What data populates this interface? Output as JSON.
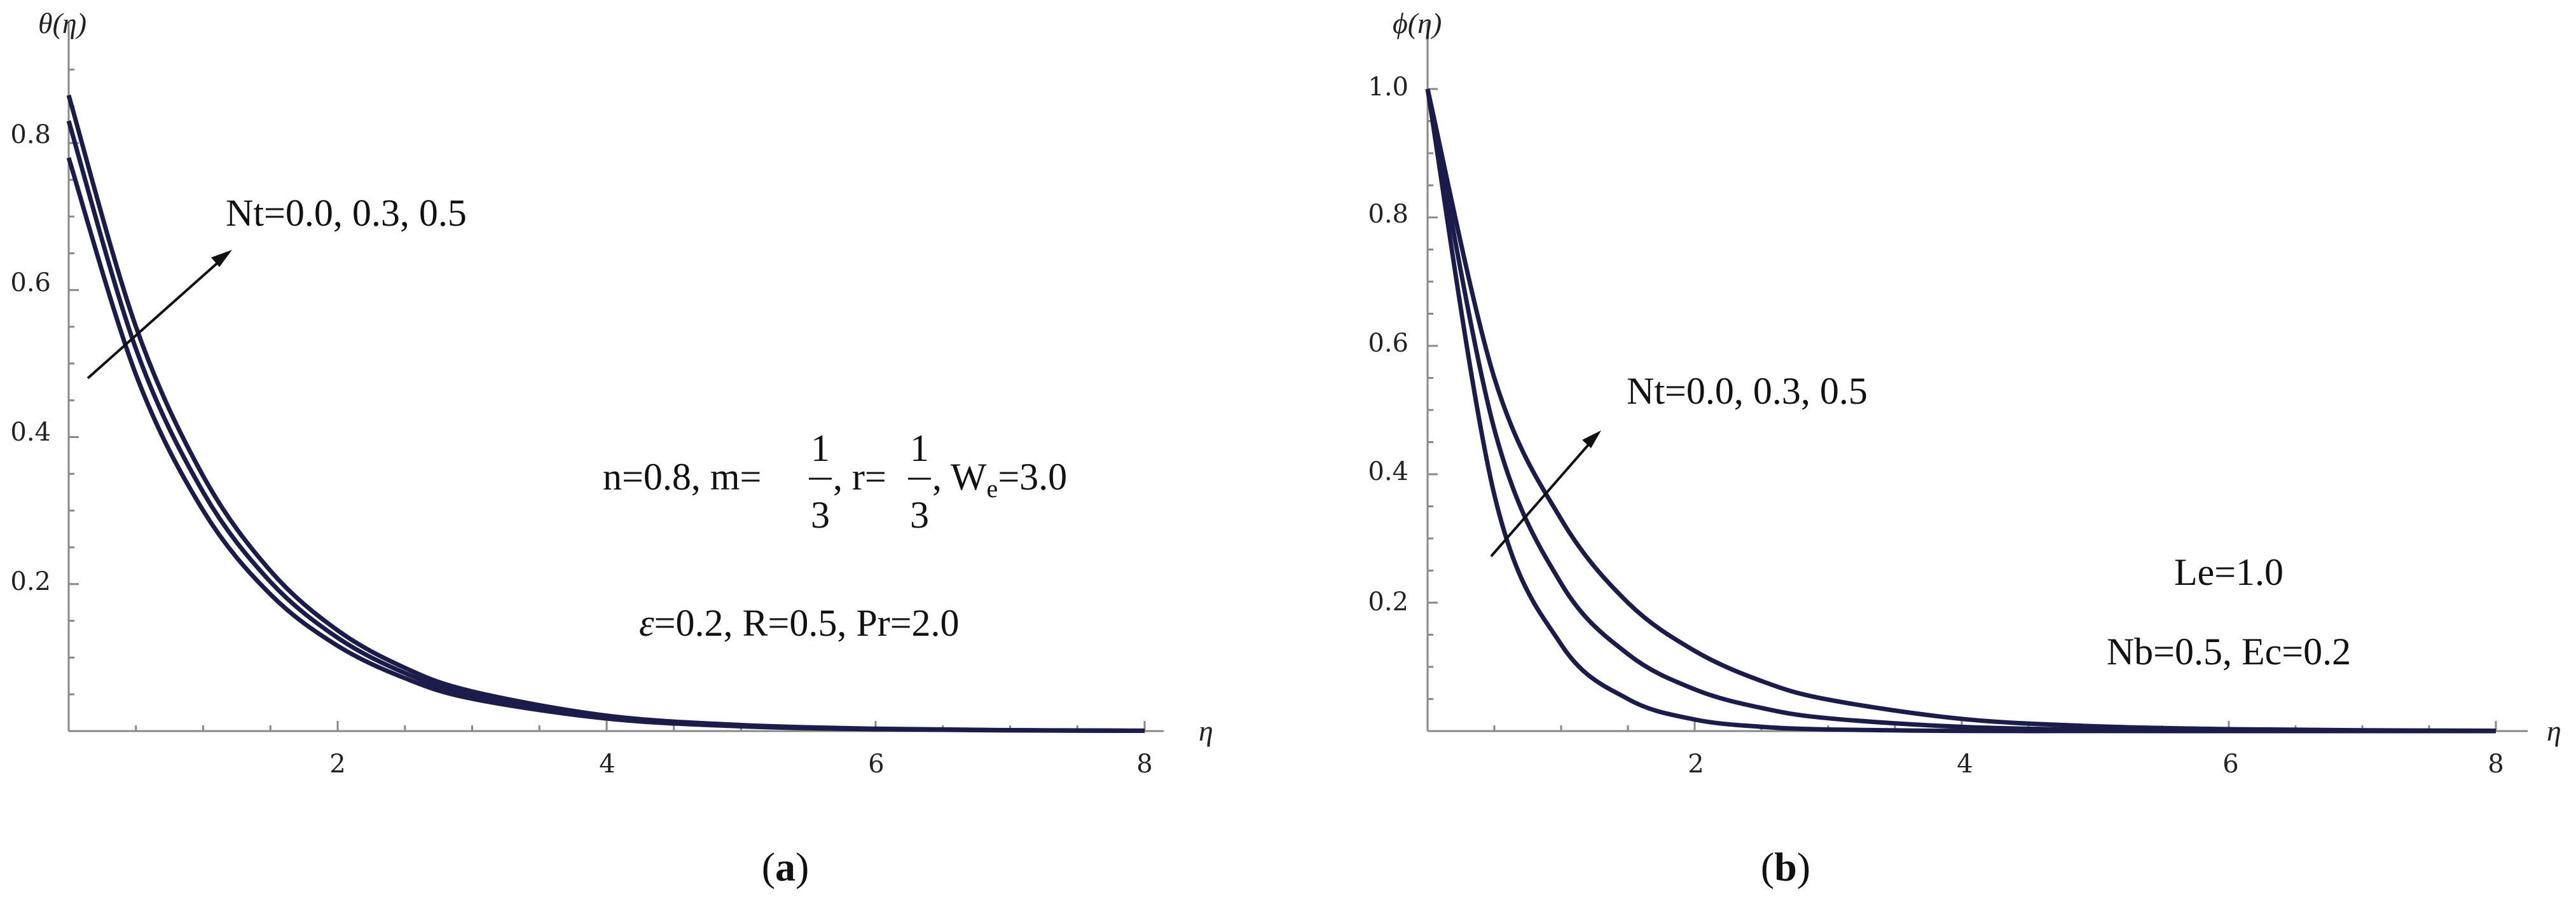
{
  "chart_data": [
    {
      "type": "line",
      "panel_label": "a",
      "ylabel": "θ(η)",
      "xlabel": "η",
      "xlim": [
        0,
        8
      ],
      "ylim": [
        0,
        0.9
      ],
      "x_ticks": [
        "2",
        "4",
        "6",
        "8"
      ],
      "y_ticks": [
        "0.2",
        "0.4",
        "0.6",
        "0.8"
      ],
      "curve_color": "#1c1c4a",
      "series": [
        {
          "x": [
            0,
            0.5,
            1,
            1.5,
            2,
            2.5,
            3,
            4,
            5,
            6,
            7,
            8
          ],
          "y": [
            0.78,
            0.485,
            0.3,
            0.186,
            0.116,
            0.072,
            0.044,
            0.017,
            0.0065,
            0.0025,
            0.001,
            0.0004
          ]
        },
        {
          "x": [
            0,
            0.5,
            1,
            1.5,
            2,
            2.5,
            3,
            4,
            5,
            6,
            7,
            8
          ],
          "y": [
            0.83,
            0.52,
            0.325,
            0.203,
            0.127,
            0.079,
            0.049,
            0.019,
            0.0073,
            0.0028,
            0.0011,
            0.0004
          ]
        },
        {
          "x": [
            0,
            0.5,
            1,
            1.5,
            2,
            2.5,
            3,
            4,
            5,
            6,
            7,
            8
          ],
          "y": [
            0.865,
            0.55,
            0.347,
            0.218,
            0.137,
            0.086,
            0.054,
            0.021,
            0.0082,
            0.0032,
            0.0013,
            0.0005
          ]
        }
      ],
      "arrow_label": "Nt=0.0, 0.3, 0.5",
      "params_line1_prefix": "n=0.8, m=",
      "params_frac_num": "1",
      "params_frac_den": "3",
      "params_r": ", r=",
      "params_we": ", W",
      "params_we_sub": "e",
      "params_we_val": "=3.0",
      "params_line2_eps": "ε",
      "params_line2_rest": "=0.2, R=0.5, Pr=2.0",
      "caption_open": "(",
      "caption_letter": "a",
      "caption_close": ")"
    },
    {
      "type": "line",
      "panel_label": "b",
      "ylabel": "ϕ(η)",
      "xlabel": "η",
      "xlim": [
        0,
        8
      ],
      "ylim": [
        0,
        1.0
      ],
      "x_ticks": [
        "2",
        "4",
        "6",
        "8"
      ],
      "y_ticks": [
        "0.2",
        "0.4",
        "0.6",
        "0.8",
        "1.0"
      ],
      "curve_color": "#1c1c4a",
      "series": [
        {
          "x": [
            0,
            0.5,
            1,
            1.5,
            2,
            2.5,
            3,
            4,
            5,
            6,
            7,
            8
          ],
          "y": [
            1.0,
            0.368,
            0.135,
            0.05,
            0.018,
            0.0067,
            0.0025,
            0.0003,
            5e-05,
            0,
            0,
            0
          ]
        },
        {
          "x": [
            0,
            0.5,
            1,
            1.5,
            2,
            2.5,
            3,
            4,
            5,
            6,
            7,
            8
          ],
          "y": [
            1.0,
            0.47,
            0.23,
            0.12,
            0.065,
            0.036,
            0.02,
            0.0065,
            0.0021,
            0.0007,
            0.0002,
            0.0001
          ]
        },
        {
          "x": [
            0,
            0.5,
            1,
            1.5,
            2,
            2.5,
            3,
            4,
            5,
            6,
            7,
            8
          ],
          "y": [
            1.0,
            0.55,
            0.33,
            0.2,
            0.125,
            0.078,
            0.049,
            0.019,
            0.0075,
            0.003,
            0.0012,
            0.0005
          ]
        }
      ],
      "arrow_label": "Nt=0.0, 0.3, 0.5",
      "param_le": "Le=1.0",
      "param_nb_ec": "Nb=0.5, Ec=0.2",
      "caption_open": "(",
      "caption_letter": "b",
      "caption_close": ")"
    }
  ]
}
